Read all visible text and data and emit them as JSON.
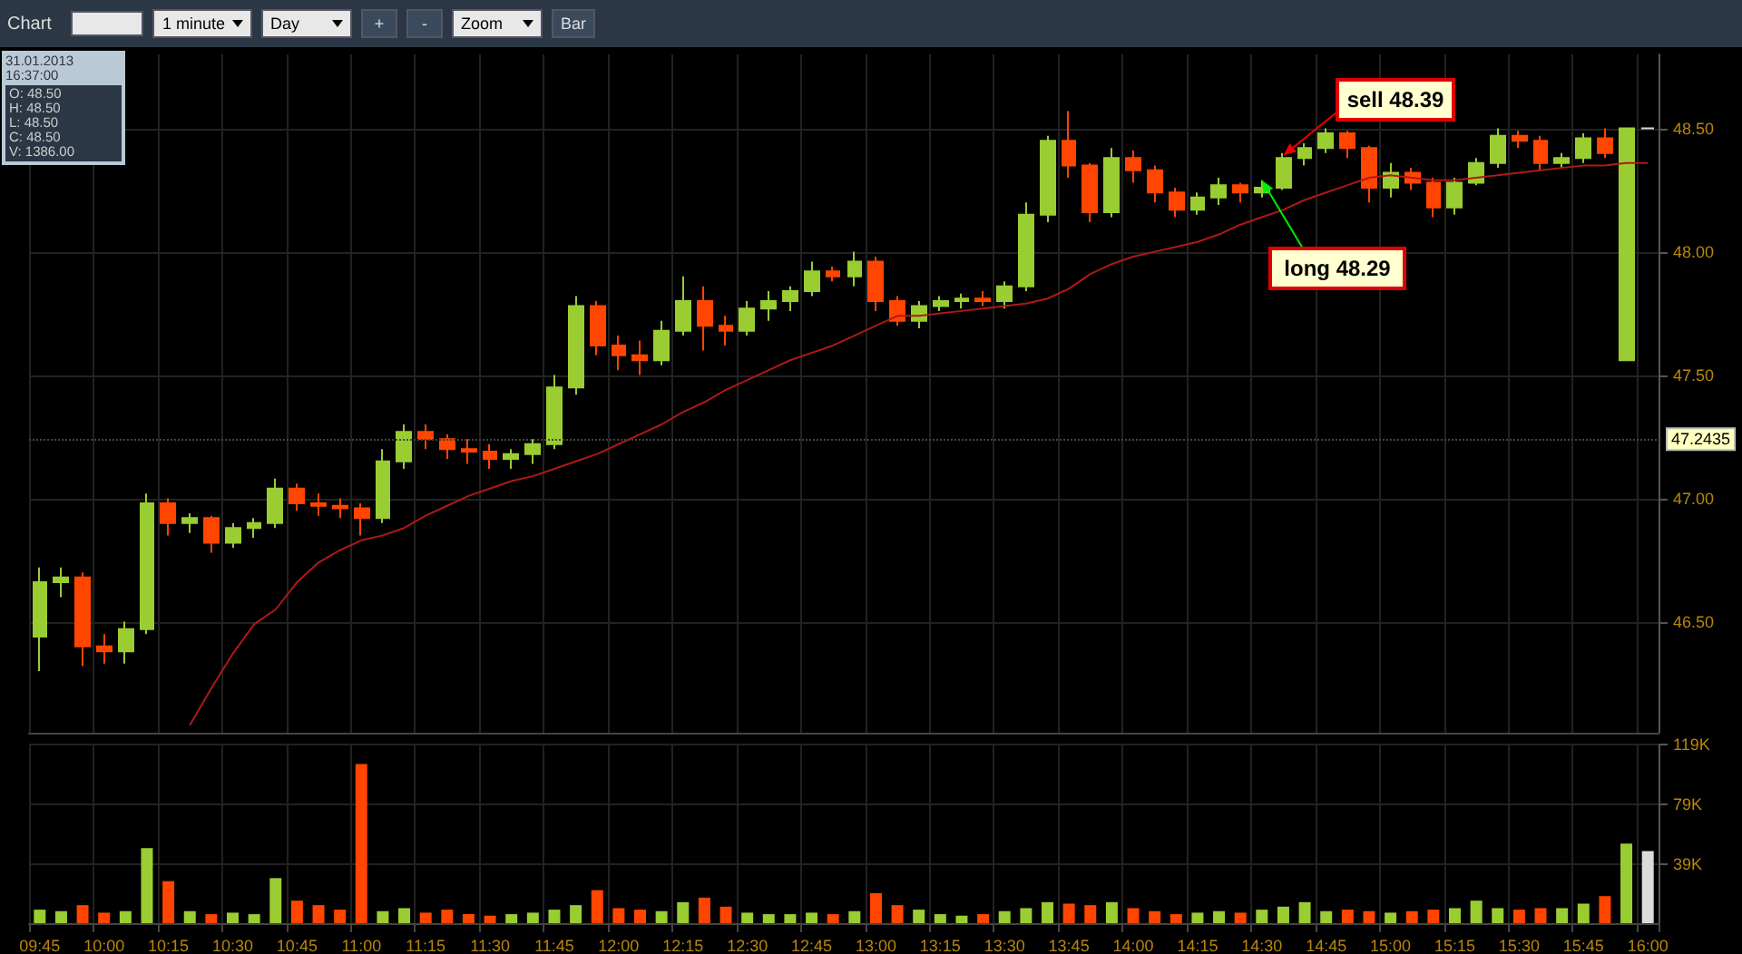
{
  "chart_data": [
    {
      "type": "candlestick",
      "title": "Chart",
      "categories": [
        "09:45",
        null,
        null,
        "10:00",
        null,
        null,
        "10:15",
        null,
        null,
        "10:30",
        null,
        null,
        "10:45",
        null,
        null,
        "11:00",
        null,
        null,
        "11:15",
        null,
        null,
        "11:30",
        null,
        null,
        "11:45",
        null,
        null,
        "12:00",
        null,
        null,
        "12:15",
        null,
        null,
        "12:30",
        null,
        null,
        "12:45",
        null,
        null,
        "13:00",
        null,
        null,
        "13:15",
        null,
        null,
        "13:30",
        null,
        null,
        "13:45",
        null,
        null,
        "14:00",
        null,
        null,
        "14:15",
        null,
        null,
        "14:30",
        null,
        null,
        "14:45",
        null,
        null,
        "15:00",
        null,
        null,
        "15:15",
        null,
        null,
        "15:30",
        null,
        null,
        "15:45",
        null,
        null,
        "16:00"
      ],
      "ohlc": [
        [
          46.44,
          46.72,
          46.3,
          46.66
        ],
        [
          46.66,
          46.72,
          46.6,
          46.68
        ],
        [
          46.68,
          46.7,
          46.32,
          46.4
        ],
        [
          46.4,
          46.45,
          46.33,
          46.38
        ],
        [
          46.38,
          46.5,
          46.33,
          46.47
        ],
        [
          46.47,
          47.02,
          46.45,
          46.98
        ],
        [
          46.98,
          47.0,
          46.85,
          46.9
        ],
        [
          46.9,
          46.94,
          46.86,
          46.92
        ],
        [
          46.92,
          46.93,
          46.78,
          46.82
        ],
        [
          46.82,
          46.9,
          46.8,
          46.88
        ],
        [
          46.88,
          46.92,
          46.84,
          46.9
        ],
        [
          46.9,
          47.08,
          46.88,
          47.04
        ],
        [
          47.04,
          47.06,
          46.95,
          46.98
        ],
        [
          46.98,
          47.02,
          46.93,
          46.97
        ],
        [
          46.97,
          47.0,
          46.92,
          46.96
        ],
        [
          46.96,
          46.98,
          46.85,
          46.92
        ],
        [
          46.92,
          47.2,
          46.9,
          47.15
        ],
        [
          47.15,
          47.3,
          47.12,
          47.27
        ],
        [
          47.27,
          47.3,
          47.2,
          47.24
        ],
        [
          47.24,
          47.26,
          47.16,
          47.2
        ],
        [
          47.2,
          47.24,
          47.14,
          47.19
        ],
        [
          47.19,
          47.22,
          47.12,
          47.16
        ],
        [
          47.16,
          47.2,
          47.12,
          47.18
        ],
        [
          47.18,
          47.24,
          47.14,
          47.22
        ],
        [
          47.22,
          47.5,
          47.2,
          47.45
        ],
        [
          47.45,
          47.82,
          47.42,
          47.78
        ],
        [
          47.78,
          47.8,
          47.58,
          47.62
        ],
        [
          47.62,
          47.66,
          47.52,
          47.58
        ],
        [
          47.58,
          47.64,
          47.5,
          47.56
        ],
        [
          47.56,
          47.72,
          47.54,
          47.68
        ],
        [
          47.68,
          47.9,
          47.66,
          47.8
        ],
        [
          47.8,
          47.86,
          47.6,
          47.7
        ],
        [
          47.7,
          47.74,
          47.62,
          47.68
        ],
        [
          47.68,
          47.8,
          47.66,
          47.77
        ],
        [
          47.77,
          47.84,
          47.72,
          47.8
        ],
        [
          47.8,
          47.86,
          47.76,
          47.84
        ],
        [
          47.84,
          47.96,
          47.82,
          47.92
        ],
        [
          47.92,
          47.94,
          47.88,
          47.9
        ],
        [
          47.9,
          48.0,
          47.86,
          47.96
        ],
        [
          47.96,
          47.98,
          47.76,
          47.8
        ],
        [
          47.8,
          47.82,
          47.7,
          47.72
        ],
        [
          47.72,
          47.8,
          47.69,
          47.78
        ],
        [
          47.78,
          47.82,
          47.76,
          47.8
        ],
        [
          47.8,
          47.83,
          47.77,
          47.81
        ],
        [
          47.81,
          47.84,
          47.78,
          47.8
        ],
        [
          47.8,
          47.88,
          47.77,
          47.86
        ],
        [
          47.86,
          48.2,
          47.84,
          48.15
        ],
        [
          48.15,
          48.47,
          48.12,
          48.45
        ],
        [
          48.45,
          48.57,
          48.3,
          48.35
        ],
        [
          48.35,
          48.36,
          48.12,
          48.16
        ],
        [
          48.16,
          48.42,
          48.14,
          48.38
        ],
        [
          48.38,
          48.41,
          48.28,
          48.33
        ],
        [
          48.33,
          48.35,
          48.2,
          48.24
        ],
        [
          48.24,
          48.26,
          48.14,
          48.17
        ],
        [
          48.17,
          48.24,
          48.15,
          48.22
        ],
        [
          48.22,
          48.3,
          48.19,
          48.27
        ],
        [
          48.27,
          48.28,
          48.2,
          48.24
        ],
        [
          48.24,
          48.29,
          48.22,
          48.26
        ],
        [
          48.26,
          48.4,
          48.25,
          48.38
        ],
        [
          48.38,
          48.44,
          48.35,
          48.42
        ],
        [
          48.42,
          48.5,
          48.4,
          48.48
        ],
        [
          48.48,
          48.49,
          48.38,
          48.42
        ],
        [
          48.42,
          48.43,
          48.2,
          48.26
        ],
        [
          48.26,
          48.36,
          48.22,
          48.32
        ],
        [
          48.32,
          48.34,
          48.25,
          48.28
        ],
        [
          48.28,
          48.3,
          48.14,
          48.18
        ],
        [
          48.18,
          48.3,
          48.15,
          48.28
        ],
        [
          48.28,
          48.38,
          48.27,
          48.36
        ],
        [
          48.36,
          48.5,
          48.34,
          48.47
        ],
        [
          48.47,
          48.49,
          48.42,
          48.45
        ],
        [
          48.45,
          48.47,
          48.33,
          48.36
        ],
        [
          48.36,
          48.4,
          48.34,
          48.38
        ],
        [
          48.38,
          48.48,
          48.36,
          48.46
        ],
        [
          48.46,
          48.5,
          48.38,
          48.4
        ],
        [
          47.56,
          48.5,
          47.56,
          48.5
        ],
        [
          48.5,
          48.5,
          48.5,
          48.5
        ]
      ],
      "colors": [
        "#9acd32",
        "#9acd32",
        "#ff4500",
        "#ff4500",
        "#9acd32",
        "#9acd32",
        "#ff4500",
        "#9acd32",
        "#ff4500",
        "#9acd32",
        "#9acd32",
        "#9acd32",
        "#ff4500",
        "#ff4500",
        "#ff4500",
        "#ff4500",
        "#9acd32",
        "#9acd32",
        "#ff4500",
        "#ff4500",
        "#ff4500",
        "#ff4500",
        "#9acd32",
        "#9acd32",
        "#9acd32",
        "#9acd32",
        "#ff4500",
        "#ff4500",
        "#ff4500",
        "#9acd32",
        "#9acd32",
        "#ff4500",
        "#ff4500",
        "#9acd32",
        "#9acd32",
        "#9acd32",
        "#9acd32",
        "#ff4500",
        "#9acd32",
        "#ff4500",
        "#ff4500",
        "#9acd32",
        "#9acd32",
        "#9acd32",
        "#ff4500",
        "#9acd32",
        "#9acd32",
        "#9acd32",
        "#ff4500",
        "#ff4500",
        "#9acd32",
        "#ff4500",
        "#ff4500",
        "#ff4500",
        "#9acd32",
        "#9acd32",
        "#ff4500",
        "#9acd32",
        "#9acd32",
        "#9acd32",
        "#9acd32",
        "#ff4500",
        "#ff4500",
        "#9acd32",
        "#ff4500",
        "#ff4500",
        "#9acd32",
        "#9acd32",
        "#9acd32",
        "#ff4500",
        "#ff4500",
        "#9acd32",
        "#9acd32",
        "#ff4500",
        "#9acd32",
        "#dcdcdc"
      ],
      "series": [
        {
          "type": "line",
          "color": "#b01818",
          "values": [
            null,
            null,
            null,
            null,
            null,
            null,
            null,
            46.08,
            46.23,
            46.37,
            46.49,
            46.55,
            46.66,
            46.74,
            46.79,
            46.83,
            46.85,
            46.88,
            46.93,
            46.97,
            47.01,
            47.04,
            47.07,
            47.09,
            47.12,
            47.15,
            47.18,
            47.22,
            47.26,
            47.3,
            47.35,
            47.39,
            47.44,
            47.48,
            47.52,
            47.56,
            47.59,
            47.62,
            47.66,
            47.7,
            47.74,
            47.74,
            47.75,
            47.76,
            47.77,
            47.78,
            47.79,
            47.81,
            47.85,
            47.91,
            47.95,
            47.98,
            48.0,
            48.02,
            48.04,
            48.07,
            48.11,
            48.14,
            48.17,
            48.21,
            48.24,
            48.27,
            48.3,
            48.31,
            48.3,
            48.29,
            48.29,
            48.3,
            48.31,
            48.32,
            48.33,
            48.34,
            48.35,
            48.35,
            48.36,
            48.36
          ]
        }
      ],
      "ylim": [
        46.05,
        48.8
      ],
      "yticks": [
        {
          "value": 46.5,
          "label": "46.50"
        },
        {
          "value": 47,
          "label": "47.00"
        },
        {
          "value": 47.5,
          "label": "47.50"
        },
        {
          "value": 48,
          "label": "48.00"
        },
        {
          "value": 48.5,
          "label": "48.50"
        }
      ],
      "ref_lines": [
        {
          "axis": "y",
          "value": 47.2435,
          "label": "47.2435"
        }
      ],
      "grid": true,
      "tick_labels": "y",
      "annotations": [
        "1 minute",
        "Day",
        "+",
        "-",
        "Zoom",
        "Bar",
        "31.01.2013 16:37:00",
        "O: 48.50",
        "H: 48.50",
        "L: 48.50",
        "C: 48.50",
        "V: 1386.00",
        {
          "text": "long 48.29",
          "x": "14:30",
          "y": 48.29
        },
        {
          "text": "sell 48.39",
          "y": 48.39
        }
      ]
    },
    {
      "type": "bar",
      "categories": [
        "09:45",
        null,
        null,
        "10:00",
        null,
        null,
        "10:15",
        null,
        null,
        "10:30",
        null,
        null,
        "10:45",
        null,
        null,
        "11:00",
        null,
        null,
        "11:15",
        null,
        null,
        "11:30",
        null,
        null,
        "11:45",
        null,
        null,
        "12:00",
        null,
        null,
        "12:15",
        null,
        null,
        "12:30",
        null,
        null,
        "12:45",
        null,
        null,
        "13:00",
        null,
        null,
        "13:15",
        null,
        null,
        "13:30",
        null,
        null,
        "13:45",
        null,
        null,
        "14:00",
        null,
        null,
        "14:15",
        null,
        null,
        "14:30",
        null,
        null,
        "14:45",
        null,
        null,
        "15:00",
        null,
        null,
        "15:15",
        null,
        null,
        "15:30",
        null,
        null,
        "15:45",
        null,
        null,
        "16:00"
      ],
      "values": [
        9000,
        8000,
        12000,
        7000,
        8000,
        50000,
        28000,
        8000,
        6000,
        7000,
        6000,
        30000,
        15000,
        12000,
        9000,
        106000,
        8000,
        10000,
        7000,
        9000,
        6000,
        5000,
        6000,
        7000,
        9000,
        12000,
        22000,
        10000,
        9000,
        8000,
        14000,
        17000,
        11000,
        7000,
        6000,
        6000,
        7000,
        6000,
        8000,
        20000,
        12000,
        9000,
        6000,
        5000,
        6000,
        8000,
        10000,
        14000,
        13000,
        12000,
        14000,
        10000,
        8000,
        6000,
        7000,
        8000,
        7000,
        9000,
        11000,
        14000,
        8000,
        9000,
        8000,
        7000,
        8000,
        9000,
        10000,
        15000,
        10000,
        9000,
        10000,
        10000,
        13000,
        18000,
        53000,
        48000
      ],
      "colors": [
        "#9acd32",
        "#9acd32",
        "#ff4500",
        "#ff4500",
        "#9acd32",
        "#9acd32",
        "#ff4500",
        "#9acd32",
        "#ff4500",
        "#9acd32",
        "#9acd32",
        "#9acd32",
        "#ff4500",
        "#ff4500",
        "#ff4500",
        "#ff4500",
        "#9acd32",
        "#9acd32",
        "#ff4500",
        "#ff4500",
        "#ff4500",
        "#ff4500",
        "#9acd32",
        "#9acd32",
        "#9acd32",
        "#9acd32",
        "#ff4500",
        "#ff4500",
        "#ff4500",
        "#9acd32",
        "#9acd32",
        "#ff4500",
        "#ff4500",
        "#9acd32",
        "#9acd32",
        "#9acd32",
        "#9acd32",
        "#ff4500",
        "#9acd32",
        "#ff4500",
        "#ff4500",
        "#9acd32",
        "#9acd32",
        "#9acd32",
        "#ff4500",
        "#9acd32",
        "#9acd32",
        "#9acd32",
        "#ff4500",
        "#ff4500",
        "#9acd32",
        "#ff4500",
        "#ff4500",
        "#ff4500",
        "#9acd32",
        "#9acd32",
        "#ff4500",
        "#9acd32",
        "#9acd32",
        "#9acd32",
        "#9acd32",
        "#ff4500",
        "#ff4500",
        "#9acd32",
        "#ff4500",
        "#ff4500",
        "#9acd32",
        "#9acd32",
        "#9acd32",
        "#ff4500",
        "#ff4500",
        "#9acd32",
        "#9acd32",
        "#ff4500",
        "#9acd32",
        "#dcdcdc"
      ],
      "ylim": [
        0,
        119000
      ],
      "yticks": [
        {
          "value": 39000,
          "label": "39K"
        },
        {
          "value": 79000,
          "label": "79K"
        },
        {
          "value": 119000,
          "label": "119K"
        }
      ],
      "grid": true
    }
  ]
}
